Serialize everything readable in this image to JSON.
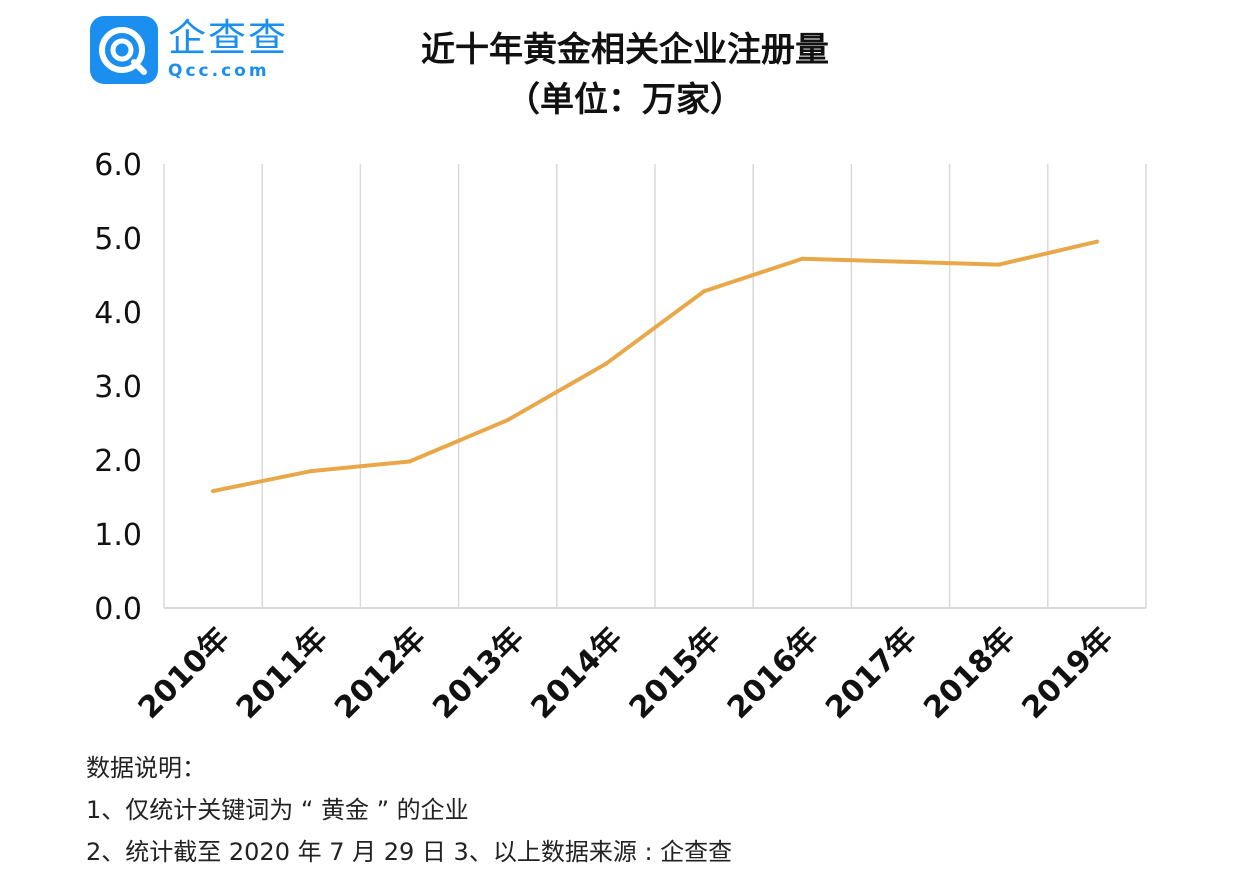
{
  "logo": {
    "name_cn": "企查查",
    "name_en": "Qcc.com",
    "color": "#1b8ff0"
  },
  "title_line1": "近十年黄金相关企业注册量",
  "title_line2": "（单位：万家）",
  "notes": {
    "heading": "数据说明：",
    "line1": "1、仅统计关键词为 “ 黄金 ” 的企业",
    "line2": "2、统计截至 2020 年 7 月 29 日   3、以上数据来源 : 企查查"
  },
  "chart_data": {
    "type": "line",
    "title": "近十年黄金相关企业注册量（单位：万家）",
    "categories": [
      "2010年",
      "2011年",
      "2012年",
      "2013年",
      "2014年",
      "2015年",
      "2016年",
      "2017年",
      "2018年",
      "2019年"
    ],
    "series": [
      {
        "values": [
          1.58,
          1.85,
          1.98,
          2.54,
          3.3,
          4.28,
          4.72,
          4.68,
          4.64,
          4.95
        ],
        "color": "#e8a84a"
      }
    ],
    "ylim": [
      0,
      6
    ],
    "yticks": [
      "0.0",
      "1.0",
      "2.0",
      "3.0",
      "4.0",
      "5.0",
      "6.0"
    ],
    "grid": "vertical",
    "legend": "none"
  }
}
